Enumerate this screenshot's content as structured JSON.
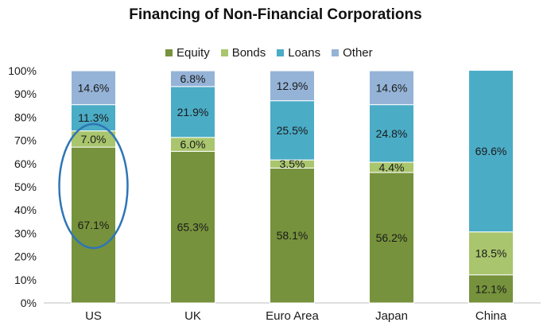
{
  "chart_data": {
    "type": "bar",
    "stacked": true,
    "title": "Financing of Non-Financial Corporations",
    "xlabel": "",
    "ylabel": "",
    "ylim": [
      0,
      100
    ],
    "y_ticks": [
      "0%",
      "10%",
      "20%",
      "30%",
      "40%",
      "50%",
      "60%",
      "70%",
      "80%",
      "90%",
      "100%"
    ],
    "categories": [
      "US",
      "UK",
      "Euro Area",
      "Japan",
      "China"
    ],
    "series": [
      {
        "name": "Equity",
        "color": "#76923c",
        "values": [
          67.1,
          65.3,
          58.1,
          56.2,
          12.1
        ],
        "labels": [
          "67.1%",
          "65.3%",
          "58.1%",
          "56.2%",
          "12.1%"
        ]
      },
      {
        "name": "Bonds",
        "color": "#a9c56d",
        "values": [
          7.0,
          6.0,
          3.5,
          4.4,
          18.5
        ],
        "labels": [
          "7.0%",
          "6.0%",
          "3.5%",
          "4.4%",
          "18.5%"
        ]
      },
      {
        "name": "Loans",
        "color": "#4bacc6",
        "values": [
          11.3,
          21.9,
          25.5,
          24.8,
          69.6
        ],
        "labels": [
          "11.3%",
          "21.9%",
          "25.5%",
          "24.8%",
          "69.6%"
        ]
      },
      {
        "name": "Other",
        "color": "#95b3d7",
        "values": [
          14.6,
          6.8,
          12.9,
          14.6,
          0
        ],
        "labels": [
          "14.6%",
          "6.8%",
          "12.9%",
          "14.6%",
          ""
        ]
      }
    ],
    "legend_position": "top",
    "grid": false,
    "annotation": {
      "type": "ellipse",
      "target_category": "US",
      "color": "#2e75b6"
    }
  }
}
